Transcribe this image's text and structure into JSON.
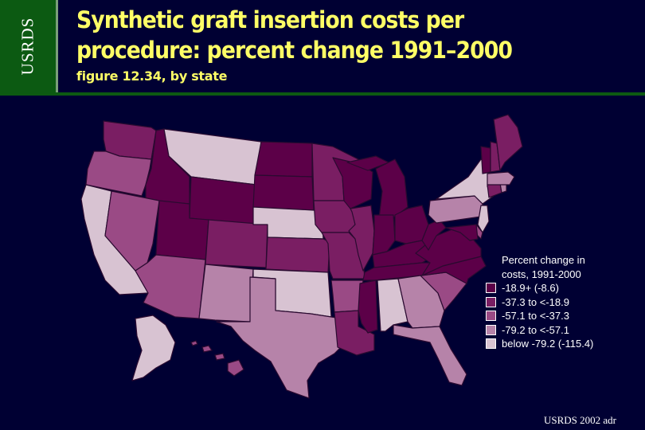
{
  "side_tab": {
    "label": "USRDS"
  },
  "header": {
    "title_line1": "Synthetic graft insertion costs per",
    "title_line2": "procedure: percent change 1991–2000",
    "subtitle": "figure 12.34, by state"
  },
  "legend": {
    "title_line1": "Percent change in",
    "title_line2": "costs, 1991-2000",
    "items": [
      {
        "label": "-18.9+ (-8.6)",
        "color": "#5c0048"
      },
      {
        "label": "-37.3 to <-18.9",
        "color": "#7a1e63"
      },
      {
        "label": "-57.1 to <-37.3",
        "color": "#9a4a85"
      },
      {
        "label": "-79.2 to <-57.1",
        "color": "#b683a9"
      },
      {
        "label": "below -79.2 (-115.4)",
        "color": "#d8c3d2"
      }
    ]
  },
  "footer": {
    "credit": "USRDS 2002 adr"
  },
  "map": {
    "border_color": "#2a0a30",
    "states": [
      {
        "abbr": "WA",
        "category": 1
      },
      {
        "abbr": "OR",
        "category": 2
      },
      {
        "abbr": "CA",
        "category": 4
      },
      {
        "abbr": "ID",
        "category": 0
      },
      {
        "abbr": "NV",
        "category": 2
      },
      {
        "abbr": "MT",
        "category": 4
      },
      {
        "abbr": "WY",
        "category": 0
      },
      {
        "abbr": "UT",
        "category": 0
      },
      {
        "abbr": "AZ",
        "category": 2
      },
      {
        "abbr": "CO",
        "category": 1
      },
      {
        "abbr": "NM",
        "category": 3
      },
      {
        "abbr": "ND",
        "category": 0
      },
      {
        "abbr": "SD",
        "category": 0
      },
      {
        "abbr": "NE",
        "category": 4
      },
      {
        "abbr": "KS",
        "category": 1
      },
      {
        "abbr": "OK",
        "category": 4
      },
      {
        "abbr": "TX",
        "category": 3
      },
      {
        "abbr": "MN",
        "category": 1
      },
      {
        "abbr": "IA",
        "category": 1
      },
      {
        "abbr": "MO",
        "category": 1
      },
      {
        "abbr": "AR",
        "category": 2
      },
      {
        "abbr": "LA",
        "category": 1
      },
      {
        "abbr": "WI",
        "category": 0
      },
      {
        "abbr": "IL",
        "category": 1
      },
      {
        "abbr": "MI",
        "category": 0
      },
      {
        "abbr": "IN",
        "category": 0
      },
      {
        "abbr": "OH",
        "category": 0
      },
      {
        "abbr": "KY",
        "category": 0
      },
      {
        "abbr": "TN",
        "category": 0
      },
      {
        "abbr": "MS",
        "category": 0
      },
      {
        "abbr": "AL",
        "category": 4
      },
      {
        "abbr": "GA",
        "category": 3
      },
      {
        "abbr": "FL",
        "category": 3
      },
      {
        "abbr": "SC",
        "category": 2
      },
      {
        "abbr": "NC",
        "category": 0
      },
      {
        "abbr": "VA",
        "category": 0
      },
      {
        "abbr": "WV",
        "category": 0
      },
      {
        "abbr": "PA",
        "category": 3
      },
      {
        "abbr": "NY",
        "category": 4
      },
      {
        "abbr": "NJ",
        "category": 4
      },
      {
        "abbr": "DE",
        "category": 2
      },
      {
        "abbr": "MD",
        "category": 0
      },
      {
        "abbr": "CT",
        "category": 1
      },
      {
        "abbr": "RI",
        "category": 3
      },
      {
        "abbr": "MA",
        "category": 3
      },
      {
        "abbr": "VT",
        "category": 0
      },
      {
        "abbr": "NH",
        "category": 1
      },
      {
        "abbr": "ME",
        "category": 1
      },
      {
        "abbr": "AK",
        "category": 4
      },
      {
        "abbr": "HI",
        "category": 2
      }
    ]
  }
}
